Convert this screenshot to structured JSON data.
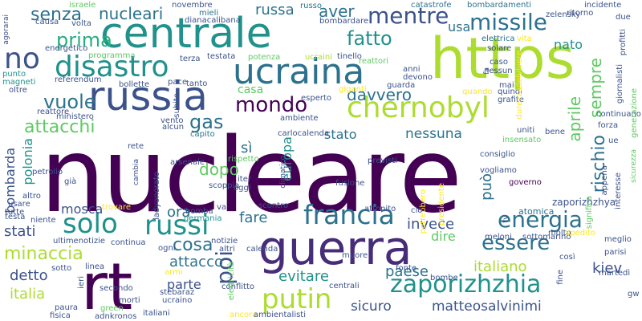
{
  "palette": {
    "dark_purple": "#440154",
    "indigo": "#472c7a",
    "slate_blue": "#3b528b",
    "steel_blue": "#2c728e",
    "teal": "#21918c",
    "sea_green": "#28ae80",
    "green": "#5ec962",
    "lime": "#addc30",
    "yellow": "#fde725"
  },
  "words": [
    {
      "text": "nucleare",
      "color": "#440154"
    },
    {
      "text": "guerra",
      "color": "#472c7a"
    },
    {
      "text": "centrale",
      "color": "#21918c"
    },
    {
      "text": "https",
      "color": "#addc30"
    },
    {
      "text": "rt",
      "color": "#440154"
    },
    {
      "text": "russia",
      "color": "#3b528b"
    },
    {
      "text": "ucraina",
      "color": "#2c728e"
    },
    {
      "text": "chernobyl",
      "color": "#addc30"
    },
    {
      "text": "disastro",
      "color": "#21918c"
    },
    {
      "text": "francia",
      "color": "#2c728e"
    },
    {
      "text": "zaporizhzhia",
      "color": "#21918c"
    },
    {
      "text": "putin",
      "color": "#addc30"
    },
    {
      "text": "solo",
      "color": "#21918c"
    },
    {
      "text": "russi",
      "color": "#21918c"
    },
    {
      "text": "energia",
      "color": "#2c728e"
    },
    {
      "text": "essere",
      "color": "#2c728e"
    },
    {
      "text": "missile",
      "color": "#2c728e"
    },
    {
      "text": "mentre",
      "color": "#3b528b"
    },
    {
      "text": "fatto",
      "color": "#21918c"
    },
    {
      "text": "senza",
      "color": "#2c728e"
    },
    {
      "text": "nucleari",
      "color": "#2c728e"
    },
    {
      "text": "russa",
      "color": "#2c728e"
    },
    {
      "text": "aver",
      "color": "#2c728e"
    },
    {
      "text": "no",
      "color": "#3b528b"
    },
    {
      "text": "prima",
      "color": "#28ae80"
    },
    {
      "text": "mondo",
      "color": "#440154"
    },
    {
      "text": "vuole",
      "color": "#2c728e"
    },
    {
      "text": "attacchi",
      "color": "#5ec962"
    },
    {
      "text": "gas",
      "color": "#2c728e"
    },
    {
      "text": "davvero",
      "color": "#2c728e"
    },
    {
      "text": "stato",
      "color": "#2c728e"
    },
    {
      "text": "nessuna",
      "color": "#2c728e"
    },
    {
      "text": "rischio",
      "color": "#2c728e"
    },
    {
      "text": "sempre",
      "color": "#5ec962"
    },
    {
      "text": "poi",
      "color": "#3b528b"
    },
    {
      "text": "mosca",
      "color": "#3b528b"
    },
    {
      "text": "minaccia",
      "color": "#addc30"
    },
    {
      "text": "cosa",
      "color": "#2c728e"
    },
    {
      "text": "attacco",
      "color": "#2c728e"
    },
    {
      "text": "dopo",
      "color": "#5ec962"
    },
    {
      "text": "ora",
      "color": "#2c728e"
    },
    {
      "text": "fare",
      "color": "#2c728e"
    },
    {
      "text": "stati",
      "color": "#3b528b"
    },
    {
      "text": "detto",
      "color": "#3b528b"
    },
    {
      "text": "italia",
      "color": "#addc30"
    },
    {
      "text": "parte",
      "color": "#3b528b"
    },
    {
      "text": "evitare",
      "color": "#21918c"
    },
    {
      "text": "paese",
      "color": "#2c728e"
    },
    {
      "text": "italiano",
      "color": "#addc30"
    },
    {
      "text": "invece",
      "color": "#3b528b"
    },
    {
      "text": "kiev",
      "color": "#3b528b"
    },
    {
      "text": "sicuro",
      "color": "#3b528b"
    },
    {
      "text": "matteosalvinimi",
      "color": "#3b528b"
    },
    {
      "text": "dire",
      "color": "#5ec962"
    },
    {
      "text": "europa",
      "color": "#21918c"
    },
    {
      "text": "usa",
      "color": "#2c728e"
    },
    {
      "text": "nato",
      "color": "#21918c"
    },
    {
      "text": "casa",
      "color": "#5ec962"
    },
    {
      "text": "bombarda",
      "color": "#3b528b"
    },
    {
      "text": "polonia",
      "color": "#21918c"
    },
    {
      "text": "sì",
      "color": "#2c728e"
    },
    {
      "text": "può",
      "color": "#2c728e"
    },
    {
      "text": "aprile",
      "color": "#5ec962"
    },
    {
      "text": "zaporizhzhya",
      "color": "#3b528b"
    },
    {
      "text": "atomica",
      "color": "#2c728e"
    },
    {
      "text": "tv",
      "color": "#3b528b"
    },
    {
      "text": "energetico",
      "color": "#3b528b"
    },
    {
      "text": "elettrica",
      "color": "#2c728e"
    },
    {
      "text": "bombardamenti",
      "color": "#2c728e"
    },
    {
      "text": "catastrofe",
      "color": "#2c728e"
    },
    {
      "text": "zelensky",
      "color": "#3b528b"
    },
    {
      "text": "incidente",
      "color": "#3b528b"
    },
    {
      "text": "novembre",
      "color": "#3b528b"
    },
    {
      "text": "mieli",
      "color": "#2c728e"
    },
    {
      "text": "russo",
      "color": "#2c728e"
    },
    {
      "text": "israele",
      "color": "#5ec962"
    },
    {
      "text": "dianacalibana",
      "color": "#3b528b"
    },
    {
      "text": "bombardare",
      "color": "#3b528b"
    },
    {
      "text": "testata",
      "color": "#3b528b"
    },
    {
      "text": "reattori",
      "color": "#5ec962"
    },
    {
      "text": "terza",
      "color": "#3b528b"
    },
    {
      "text": "potenza",
      "color": "#5ec962"
    },
    {
      "text": "ucraini",
      "color": "#addc30"
    },
    {
      "text": "tinello",
      "color": "#3b528b"
    },
    {
      "text": "referendum",
      "color": "#3b528b"
    },
    {
      "text": "bollette",
      "color": "#3b528b"
    },
    {
      "text": "pace",
      "color": "#3b528b"
    },
    {
      "text": "magneti",
      "color": "#21918c"
    },
    {
      "text": "punto",
      "color": "#21918c"
    },
    {
      "text": "programma",
      "color": "#5ec962"
    },
    {
      "text": "guarda",
      "color": "#3b528b"
    },
    {
      "text": "anni",
      "color": "#3b528b"
    },
    {
      "text": "devono",
      "color": "#3b528b"
    },
    {
      "text": "caso",
      "color": "#3b528b"
    },
    {
      "text": "nessun",
      "color": "#3b528b"
    },
    {
      "text": "mai",
      "color": "#3b528b"
    },
    {
      "text": "giganti",
      "color": "#fde725"
    },
    {
      "text": "esperto",
      "color": "#3b528b"
    },
    {
      "text": "quando",
      "color": "#fde725"
    },
    {
      "text": "quindi",
      "color": "#3b528b"
    },
    {
      "text": "grafite",
      "color": "#3b528b"
    },
    {
      "text": "ministero",
      "color": "#3b528b"
    },
    {
      "text": "vento",
      "color": "#3b528b"
    },
    {
      "text": "alcun",
      "color": "#3b528b"
    },
    {
      "text": "capito",
      "color": "#2c728e"
    },
    {
      "text": "ambiente",
      "color": "#3b528b"
    },
    {
      "text": "carlocalenda",
      "color": "#3b528b"
    },
    {
      "text": "rispetto",
      "color": "#5ec962"
    },
    {
      "text": "previsti",
      "color": "#3b528b"
    },
    {
      "text": "uniti",
      "color": "#3b528b"
    },
    {
      "text": "bene",
      "color": "#3b528b"
    },
    {
      "text": "insensato",
      "color": "#5ec962"
    },
    {
      "text": "consiglio",
      "color": "#3b528b"
    },
    {
      "text": "potrebbero",
      "color": "#fde725"
    },
    {
      "text": "fusione",
      "color": "#3b528b"
    },
    {
      "text": "governo",
      "color": "#440154"
    },
    {
      "text": "vogliamo",
      "color": "#3b528b"
    },
    {
      "text": "presidente",
      "color": "#fde725"
    },
    {
      "text": "ladyonorato",
      "color": "#3b528b"
    },
    {
      "text": "petrolio",
      "color": "#3b528b"
    },
    {
      "text": "arsenale",
      "color": "#3b528b"
    },
    {
      "text": "scoppia",
      "color": "#3b528b"
    },
    {
      "text": "oggi",
      "color": "#3b528b"
    },
    {
      "text": "iter",
      "color": "#3b528b"
    },
    {
      "text": "rete",
      "color": "#3b528b"
    },
    {
      "text": "cambia",
      "color": "#3b528b"
    },
    {
      "text": "già",
      "color": "#3b528b"
    },
    {
      "text": "altro",
      "color": "#3b528b"
    },
    {
      "text": "usare",
      "color": "#3b528b"
    },
    {
      "text": "testa",
      "color": "#3b528b"
    },
    {
      "text": "tutte",
      "color": "#3b528b"
    },
    {
      "text": "niente",
      "color": "#3b528b"
    },
    {
      "text": "trovare",
      "color": "#fde725"
    },
    {
      "text": "bomba",
      "color": "#3b528b"
    },
    {
      "text": "germania",
      "color": "#21918c"
    },
    {
      "text": "va",
      "color": "#3b528b"
    },
    {
      "text": "scontro",
      "color": "#3b528b"
    },
    {
      "text": "attonito",
      "color": "#3b528b"
    },
    {
      "text": "ciò",
      "color": "#3b528b"
    },
    {
      "text": "ultimenotizie",
      "color": "#3b528b"
    },
    {
      "text": "continua",
      "color": "#3b528b"
    },
    {
      "text": "ogni",
      "color": "#3b528b"
    },
    {
      "text": "notizie",
      "color": "#3b528b"
    },
    {
      "text": "altri",
      "color": "#3b528b"
    },
    {
      "text": "armi",
      "color": "#fde725"
    },
    {
      "text": "conflitto",
      "color": "#3b528b"
    },
    {
      "text": "stebaraz",
      "color": "#3b528b"
    },
    {
      "text": "ucraino",
      "color": "#3b528b"
    },
    {
      "text": "secondo",
      "color": "#3b528b"
    },
    {
      "text": "morti",
      "color": "#3b528b"
    },
    {
      "text": "green",
      "color": "#5ec962"
    },
    {
      "text": "adnkronos",
      "color": "#3b528b"
    },
    {
      "text": "italiani",
      "color": "#3b528b"
    },
    {
      "text": "ancora",
      "color": "#fde725"
    },
    {
      "text": "ambientalisti",
      "color": "#3b528b"
    },
    {
      "text": "paura",
      "color": "#3b528b"
    },
    {
      "text": "fisica",
      "color": "#3b528b"
    },
    {
      "text": "linea",
      "color": "#3b528b"
    },
    {
      "text": "muore",
      "color": "#3b528b"
    },
    {
      "text": "fonte",
      "color": "#3b528b"
    },
    {
      "text": "centrali",
      "color": "#3b528b"
    },
    {
      "text": "bombe",
      "color": "#3b528b"
    },
    {
      "text": "meloni",
      "color": "#3b528b"
    },
    {
      "text": "sottomarino",
      "color": "#3b528b"
    },
    {
      "text": "molto",
      "color": "#3b528b"
    },
    {
      "text": "meglio",
      "color": "#3b528b"
    },
    {
      "text": "parisi",
      "color": "#3b528b"
    },
    {
      "text": "così",
      "color": "#3b528b"
    },
    {
      "text": "martedì",
      "color": "#3b528b"
    },
    {
      "text": "spedito",
      "color": "#fde725"
    },
    {
      "text": "gw",
      "color": "#3b528b"
    },
    {
      "text": "profitti",
      "color": "#3b528b"
    },
    {
      "text": "appena",
      "color": "#3b528b"
    },
    {
      "text": "interesse",
      "color": "#3b528b"
    },
    {
      "text": "sicurezza",
      "color": "#5ec962"
    },
    {
      "text": "ue",
      "color": "#3b528b"
    },
    {
      "text": "forza",
      "color": "#3b528b"
    },
    {
      "text": "continuano",
      "color": "#3b528b"
    },
    {
      "text": "generazione",
      "color": "#5ec962"
    },
    {
      "text": "giornalisti",
      "color": "#3b528b"
    },
    {
      "text": "durezzadelvivere",
      "color": "#fde725"
    },
    {
      "text": "significa",
      "color": "#5ec962"
    },
    {
      "text": "ritorno",
      "color": "#3b528b"
    },
    {
      "text": "solare",
      "color": "#3b528b"
    },
    {
      "text": "vita",
      "color": "#fde725"
    },
    {
      "text": "fa",
      "color": "#3b528b"
    },
    {
      "text": "due",
      "color": "#3b528b"
    },
    {
      "text": "causa",
      "color": "#3b528b"
    },
    {
      "text": "volta",
      "color": "#3b528b"
    },
    {
      "text": "agorarai",
      "color": "#3b528b"
    },
    {
      "text": "oltre",
      "color": "#3b528b"
    },
    {
      "text": "reattore",
      "color": "#3b528b"
    },
    {
      "text": "subito",
      "color": "#3b528b"
    },
    {
      "text": "tanto",
      "color": "#3b528b"
    },
    {
      "text": "fine",
      "color": "#3b528b"
    },
    {
      "text": "ieri",
      "color": "#3b528b"
    },
    {
      "text": "sotto",
      "color": "#3b528b"
    },
    {
      "text": "calenda",
      "color": "#3b528b"
    },
    {
      "text": "elettricità",
      "color": "#5ec962"
    },
    {
      "text": "climatico",
      "color": "#3b528b"
    }
  ]
}
